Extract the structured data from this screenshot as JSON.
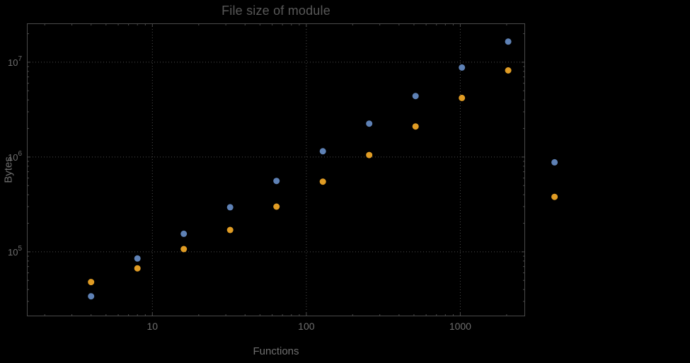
{
  "colors": {
    "background": "#000000",
    "frame": "#4a4a4a",
    "grid": "#4d4d4d",
    "labels": "#6e6e6e",
    "title": "#585858",
    "series_blue": "#5E81B5",
    "series_orange": "#E09C24"
  },
  "chart_data": {
    "type": "scatter",
    "title": "File size of module",
    "xlabel": "Functions",
    "ylabel": "Bytes",
    "xscale": "log",
    "yscale": "log",
    "grid": "dotted",
    "legend": "none",
    "xlim_log10": [
      0.185,
      3.421
    ],
    "ylim_log10": [
      4.32,
      7.41
    ],
    "x_ticks": [
      {
        "value": 10,
        "label": "10"
      },
      {
        "value": 100,
        "label": "100"
      },
      {
        "value": 1000,
        "label": "1000"
      }
    ],
    "y_ticks": [
      {
        "value": 100000,
        "base": "10",
        "exp": "5"
      },
      {
        "value": 1000000,
        "base": "10",
        "exp": "6"
      },
      {
        "value": 10000000,
        "base": "10",
        "exp": "7"
      }
    ],
    "x": [
      4,
      8,
      16,
      32,
      64,
      128,
      256,
      512,
      1024,
      2048,
      4096
    ],
    "series": [
      {
        "name": "blue-series",
        "color": "#5E81B5",
        "values": [
          34000,
          85000,
          155000,
          295000,
          560000,
          1150000,
          2250000,
          4400000,
          8800000,
          16500000,
          880000
        ]
      },
      {
        "name": "orange-series",
        "color": "#E09C24",
        "values": [
          48000,
          67000,
          107000,
          170000,
          300000,
          550000,
          1050000,
          2100000,
          4200000,
          8200000,
          380000
        ]
      }
    ]
  }
}
